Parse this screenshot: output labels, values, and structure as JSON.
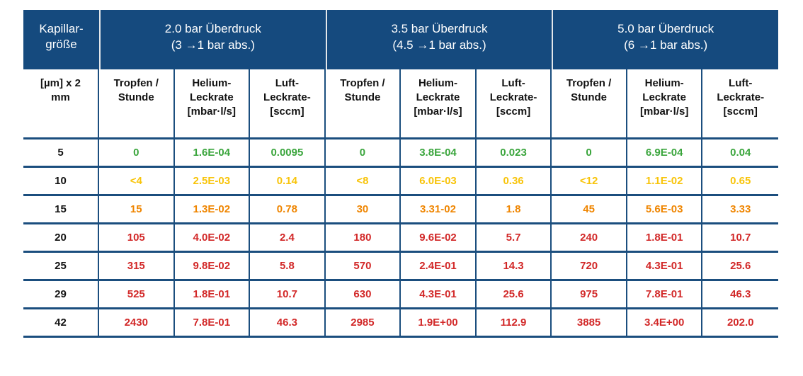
{
  "chart_data": {
    "type": "table",
    "corner_header": "Kapillar-\ngröße",
    "size_header": "[µm] x 2\nmm",
    "groups": [
      {
        "title": "2.0 bar Überdruck",
        "subtitle": "(3 →1 bar abs.)"
      },
      {
        "title": "3.5 bar Überdruck",
        "subtitle": "(4.5 →1 bar abs.)"
      },
      {
        "title": "5.0 bar Überdruck",
        "subtitle": "(6 →1 bar abs.)"
      }
    ],
    "metric_headers": [
      "Tropfen /\nStunde",
      "Helium-\nLeckrate\n[mbar·l/s]",
      "Luft-\nLeckrate-\n[sccm]"
    ],
    "rows": [
      {
        "size": "5",
        "level": "green",
        "values": [
          "0",
          "1.6E-04",
          "0.0095",
          "0",
          "3.8E-04",
          "0.023",
          "0",
          "6.9E-04",
          "0.04"
        ]
      },
      {
        "size": "10",
        "level": "yellow",
        "values": [
          "<4",
          "2.5E-03",
          "0.14",
          "<8",
          "6.0E-03",
          "0.36",
          "<12",
          "1.1E-02",
          "0.65"
        ]
      },
      {
        "size": "15",
        "level": "orange",
        "values": [
          "15",
          "1.3E-02",
          "0.78",
          "30",
          "3.31-02",
          "1.8",
          "45",
          "5.6E-03",
          "3.33"
        ]
      },
      {
        "size": "20",
        "level": "red",
        "values": [
          "105",
          "4.0E-02",
          "2.4",
          "180",
          "9.6E-02",
          "5.7",
          "240",
          "1.8E-01",
          "10.7"
        ]
      },
      {
        "size": "25",
        "level": "red",
        "values": [
          "315",
          "9.8E-02",
          "5.8",
          "570",
          "2.4E-01",
          "14.3",
          "720",
          "4.3E-01",
          "25.6"
        ]
      },
      {
        "size": "29",
        "level": "red",
        "values": [
          "525",
          "1.8E-01",
          "10.7",
          "630",
          "4.3E-01",
          "25.6",
          "975",
          "7.8E-01",
          "46.3"
        ]
      },
      {
        "size": "42",
        "level": "red",
        "values": [
          "2430",
          "7.8E-01",
          "46.3",
          "2985",
          "1.9E+00",
          "112.9",
          "3885",
          "3.4E+00",
          "202.0"
        ]
      }
    ]
  },
  "colors": {
    "header_bg": "#154a7e",
    "header_text": "#ffffff",
    "header_divider": "#e3e7ea",
    "border": "#1b4e7e",
    "subheader_text": "#131313",
    "green": "#3aa53c",
    "yellow": "#f8c40a",
    "orange": "#ef8500",
    "red": "#d22828"
  }
}
